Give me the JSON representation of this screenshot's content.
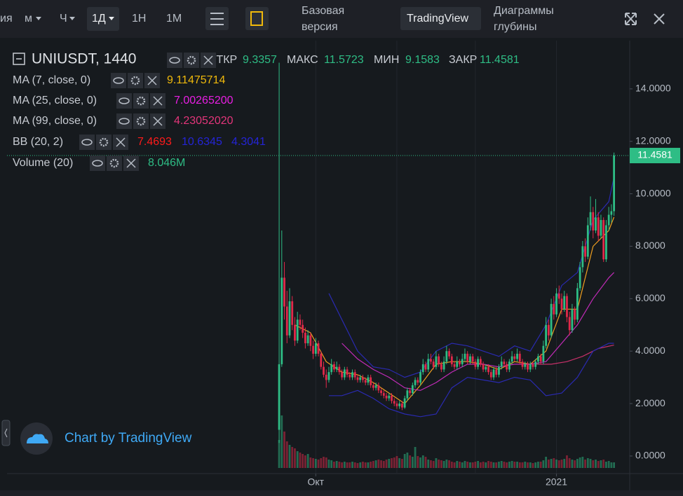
{
  "toolbar": {
    "intervals": [
      "ия",
      "м",
      "Ч",
      "1Д",
      "1Н",
      "1М"
    ],
    "basic": [
      "Базовая",
      "версия"
    ],
    "tradingview": "TradingView",
    "depth": [
      "Диаграммы",
      "глубины"
    ]
  },
  "watermark": "Chart by TradingView",
  "chart_data": {
    "type": "candlestick",
    "symbol": "UNIUSDT, 1440",
    "ohlc_labels": [
      "ОТКР",
      "МАКС",
      "МИН",
      "ЗАКР"
    ],
    "up_color": "#2ebd85",
    "down_color": "#e0294a",
    "ohlc": [
      [
        1.0,
        15.0,
        0.5,
        3.5
      ],
      [
        3.5,
        8.6,
        3.4,
        6.8
      ],
      [
        6.8,
        7.4,
        5.2,
        5.7
      ],
      [
        5.7,
        6.3,
        4.3,
        4.6
      ],
      [
        4.6,
        6.4,
        4.5,
        5.9
      ],
      [
        5.9,
        6.1,
        4.8,
        5.0
      ],
      [
        5.0,
        5.3,
        4.2,
        4.4
      ],
      [
        4.4,
        5.5,
        4.3,
        5.2
      ],
      [
        5.2,
        5.4,
        4.8,
        5.0
      ],
      [
        5.0,
        5.2,
        4.5,
        4.7
      ],
      [
        4.7,
        4.9,
        4.1,
        4.3
      ],
      [
        4.3,
        4.8,
        4.2,
        4.6
      ],
      [
        4.6,
        4.7,
        4.0,
        4.2
      ],
      [
        4.2,
        4.4,
        3.7,
        3.9
      ],
      [
        3.9,
        4.5,
        3.8,
        4.3
      ],
      [
        4.3,
        4.4,
        3.8,
        3.9
      ],
      [
        3.9,
        4.0,
        3.3,
        3.4
      ],
      [
        3.4,
        3.6,
        3.0,
        3.1
      ],
      [
        3.1,
        3.3,
        2.6,
        2.9
      ],
      [
        2.9,
        3.4,
        2.8,
        3.2
      ],
      [
        3.2,
        3.7,
        3.1,
        3.5
      ],
      [
        3.5,
        3.6,
        3.2,
        3.3
      ],
      [
        3.3,
        3.6,
        3.2,
        3.4
      ],
      [
        3.4,
        3.5,
        3.1,
        3.2
      ],
      [
        3.2,
        3.3,
        2.9,
        3.0
      ],
      [
        3.0,
        3.4,
        2.9,
        3.3
      ],
      [
        3.3,
        3.4,
        3.0,
        3.1
      ],
      [
        3.1,
        3.2,
        2.9,
        3.0
      ],
      [
        3.0,
        3.3,
        2.9,
        3.2
      ],
      [
        3.2,
        3.3,
        2.9,
        3.0
      ],
      [
        3.0,
        3.1,
        2.8,
        2.9
      ],
      [
        2.9,
        3.1,
        2.8,
        3.0
      ],
      [
        3.0,
        3.1,
        2.8,
        2.9
      ],
      [
        2.9,
        3.0,
        2.7,
        2.8
      ],
      [
        2.8,
        3.1,
        2.7,
        3.0
      ],
      [
        3.0,
        3.1,
        2.6,
        2.7
      ],
      [
        2.7,
        2.8,
        2.5,
        2.6
      ],
      [
        2.6,
        2.8,
        2.5,
        2.7
      ],
      [
        2.7,
        2.8,
        2.4,
        2.5
      ],
      [
        2.5,
        2.6,
        2.3,
        2.4
      ],
      [
        2.4,
        2.5,
        2.2,
        2.3
      ],
      [
        2.3,
        2.4,
        2.1,
        2.2
      ],
      [
        2.2,
        2.4,
        2.1,
        2.3
      ],
      [
        2.3,
        2.4,
        2.0,
        2.1
      ],
      [
        2.1,
        2.2,
        1.9,
        2.0
      ],
      [
        2.0,
        2.1,
        1.8,
        1.9
      ],
      [
        1.9,
        2.1,
        1.8,
        2.0
      ],
      [
        2.0,
        2.1,
        1.75,
        1.85
      ],
      [
        1.85,
        2.3,
        1.8,
        2.2
      ],
      [
        2.2,
        2.6,
        2.1,
        2.5
      ],
      [
        2.5,
        2.6,
        2.3,
        2.4
      ],
      [
        2.4,
        2.8,
        2.3,
        2.7
      ],
      [
        2.7,
        3.0,
        2.6,
        2.9
      ],
      [
        2.9,
        3.0,
        2.7,
        2.8
      ],
      [
        2.8,
        3.3,
        2.7,
        3.2
      ],
      [
        3.2,
        3.7,
        3.1,
        3.5
      ],
      [
        3.5,
        3.6,
        3.2,
        3.3
      ],
      [
        3.3,
        3.9,
        3.2,
        3.7
      ],
      [
        3.7,
        3.9,
        3.5,
        3.6
      ],
      [
        3.6,
        3.7,
        3.3,
        3.4
      ],
      [
        3.4,
        4.0,
        3.3,
        3.8
      ],
      [
        3.8,
        3.9,
        3.4,
        3.5
      ],
      [
        3.5,
        3.6,
        3.2,
        3.3
      ],
      [
        3.3,
        3.8,
        3.2,
        3.6
      ],
      [
        3.6,
        4.2,
        3.5,
        4.0
      ],
      [
        4.0,
        4.1,
        3.7,
        3.8
      ],
      [
        3.8,
        3.9,
        3.4,
        3.5
      ],
      [
        3.5,
        3.6,
        3.3,
        3.4
      ],
      [
        3.4,
        3.8,
        3.3,
        3.6
      ],
      [
        3.6,
        3.7,
        3.4,
        3.5
      ],
      [
        3.5,
        3.9,
        3.4,
        3.7
      ],
      [
        3.7,
        4.1,
        3.6,
        3.9
      ],
      [
        3.9,
        4.0,
        3.5,
        3.6
      ],
      [
        3.6,
        3.9,
        3.5,
        3.8
      ],
      [
        3.8,
        3.9,
        3.5,
        3.6
      ],
      [
        3.6,
        3.7,
        3.3,
        3.4
      ],
      [
        3.4,
        3.8,
        3.3,
        3.7
      ],
      [
        3.7,
        3.8,
        3.4,
        3.5
      ],
      [
        3.5,
        3.6,
        3.2,
        3.3
      ],
      [
        3.3,
        3.5,
        3.2,
        3.4
      ],
      [
        3.4,
        3.5,
        3.1,
        3.2
      ],
      [
        3.2,
        3.3,
        2.9,
        3.0
      ],
      [
        3.0,
        3.4,
        2.9,
        3.3
      ],
      [
        3.3,
        3.4,
        3.0,
        3.1
      ],
      [
        3.1,
        3.5,
        3.0,
        3.4
      ],
      [
        3.4,
        3.8,
        3.3,
        3.6
      ],
      [
        3.6,
        3.7,
        3.4,
        3.5
      ],
      [
        3.5,
        3.6,
        3.2,
        3.3
      ],
      [
        3.3,
        3.7,
        3.2,
        3.6
      ],
      [
        3.6,
        4.0,
        3.5,
        3.8
      ],
      [
        3.8,
        3.9,
        3.6,
        3.7
      ],
      [
        3.7,
        4.1,
        3.6,
        3.9
      ],
      [
        3.9,
        4.0,
        3.5,
        3.6
      ],
      [
        3.6,
        3.7,
        3.3,
        3.4
      ],
      [
        3.4,
        3.6,
        3.3,
        3.5
      ],
      [
        3.5,
        3.6,
        3.2,
        3.3
      ],
      [
        3.3,
        3.6,
        3.2,
        3.5
      ],
      [
        3.5,
        3.6,
        3.3,
        3.4
      ],
      [
        3.4,
        3.7,
        3.3,
        3.6
      ],
      [
        3.6,
        3.9,
        3.5,
        3.8
      ],
      [
        3.8,
        3.9,
        3.5,
        3.6
      ],
      [
        3.6,
        4.4,
        3.5,
        4.2
      ],
      [
        4.2,
        5.3,
        4.1,
        5.0
      ],
      [
        5.0,
        5.2,
        4.4,
        4.6
      ],
      [
        4.6,
        6.0,
        4.5,
        5.8
      ],
      [
        5.8,
        6.1,
        5.2,
        5.4
      ],
      [
        5.4,
        6.4,
        5.3,
        6.2
      ],
      [
        6.2,
        6.5,
        5.8,
        6.0
      ],
      [
        6.0,
        6.2,
        5.4,
        5.6
      ],
      [
        5.6,
        6.3,
        5.5,
        6.1
      ],
      [
        6.1,
        6.2,
        5.1,
        5.3
      ],
      [
        5.3,
        5.5,
        4.6,
        4.8
      ],
      [
        4.8,
        5.8,
        4.7,
        5.6
      ],
      [
        5.6,
        5.7,
        5.0,
        5.2
      ],
      [
        5.2,
        6.6,
        5.1,
        6.4
      ],
      [
        6.4,
        7.4,
        6.3,
        7.2
      ],
      [
        7.2,
        8.2,
        7.0,
        8.0
      ],
      [
        8.0,
        8.3,
        7.4,
        7.6
      ],
      [
        7.6,
        9.1,
        7.5,
        8.8
      ],
      [
        8.8,
        9.9,
        8.6,
        9.3
      ],
      [
        9.3,
        9.5,
        8.3,
        8.6
      ],
      [
        8.6,
        9.8,
        8.5,
        9.1
      ],
      [
        9.1,
        9.3,
        8.2,
        8.4
      ],
      [
        8.4,
        9.2,
        8.3,
        9.0
      ],
      [
        9.0,
        9.1,
        7.4,
        7.5
      ],
      [
        7.5,
        9.0,
        7.4,
        8.8
      ],
      [
        8.8,
        9.5,
        8.6,
        9.2
      ],
      [
        9.2,
        9.6,
        8.9,
        9.3357
      ],
      [
        9.3357,
        11.5723,
        9.1583,
        11.4581
      ]
    ],
    "volume": [
      40,
      75,
      52,
      38,
      33,
      30,
      28,
      24,
      22,
      20,
      18,
      20,
      15,
      14,
      13,
      12,
      14,
      16,
      15,
      12,
      11,
      9,
      10,
      9,
      8,
      9,
      8,
      8,
      9,
      8,
      7,
      8,
      9,
      8,
      8,
      9,
      10,
      11,
      12,
      11,
      10,
      12,
      13,
      14,
      15,
      17,
      14,
      13,
      20,
      22,
      18,
      16,
      30,
      17,
      15,
      18,
      16,
      12,
      11,
      10,
      14,
      12,
      11,
      10,
      12,
      11,
      9,
      8,
      10,
      9,
      8,
      10,
      9,
      8,
      8,
      9,
      10,
      8,
      9,
      8,
      10,
      9,
      8,
      8,
      9,
      10,
      9,
      8,
      9,
      10,
      9,
      9,
      8,
      8,
      9,
      8,
      8,
      7,
      8,
      9,
      9,
      11,
      16,
      12,
      13,
      14,
      12,
      11,
      12,
      13,
      18,
      14,
      12,
      11,
      13,
      15,
      16,
      12,
      14,
      13,
      11,
      12,
      10,
      11,
      12,
      9,
      10,
      8,
      8
    ],
    "volume_lim": [
      0,
      100
    ],
    "xlim": [
      -106.7,
      134
    ],
    "xticks": [
      {
        "value": 14,
        "label": "Окт"
      },
      {
        "value": 106,
        "label": "2021"
      }
    ],
    "xgrid_minor": [
      45,
      75
    ],
    "ylim": [
      -0.67,
      15.84
    ],
    "yticks": [
      {
        "value": 0,
        "label": "0.0000"
      },
      {
        "value": 2,
        "label": "2.0000"
      },
      {
        "value": 4,
        "label": "4.0000"
      },
      {
        "value": 6,
        "label": "6.0000"
      },
      {
        "value": 8,
        "label": "8.0000"
      },
      {
        "value": 10,
        "label": "10.0000"
      },
      {
        "value": 12,
        "label": "12.0000"
      },
      {
        "value": 14,
        "label": "14.0000"
      }
    ],
    "indicators": [
      {
        "name": "MA (7, close, 0)",
        "legend": [
          {
            "text": "9.11475714",
            "color": "#f0b90b"
          }
        ],
        "lines": [
          {
            "color": "#f0a020",
            "x": [
              6,
              12,
              18,
              24,
              30,
              36,
              42,
              48,
              54,
              60,
              66,
              72,
              78,
              84,
              90,
              96,
              102,
              108,
              114,
              120,
              126,
              128
            ],
            "values": [
              5.0,
              4.7,
              3.6,
              3.2,
              3.1,
              2.8,
              2.4,
              2.0,
              2.7,
              3.5,
              3.6,
              3.6,
              3.5,
              3.3,
              3.6,
              3.5,
              4.0,
              5.6,
              5.6,
              8.0,
              8.6,
              9.11
            ]
          }
        ]
      },
      {
        "name": "MA (25, close, 0)",
        "legend": [
          {
            "text": "7.00265200",
            "color": "#e91ee3"
          }
        ],
        "lines": [
          {
            "color": "#c22bb8",
            "x": [
              24,
              30,
              36,
              42,
              48,
              54,
              60,
              66,
              72,
              78,
              84,
              90,
              96,
              102,
              108,
              114,
              120,
              126,
              128
            ],
            "values": [
              4.3,
              3.7,
              3.3,
              3.0,
              2.6,
              2.5,
              2.8,
              3.2,
              3.5,
              3.5,
              3.4,
              3.5,
              3.5,
              3.6,
              4.3,
              5.0,
              6.0,
              6.8,
              7.0
            ]
          }
        ]
      },
      {
        "name": "MA (99, close, 0)",
        "legend": [
          {
            "text": "4.23052020",
            "color": "#e3357a"
          }
        ],
        "lines": [
          {
            "color": "#c8306a",
            "x": [
              98,
              104,
              110,
              116,
              122,
              128
            ],
            "values": [
              3.5,
              3.5,
              3.6,
              3.8,
              4.1,
              4.23
            ]
          }
        ]
      },
      {
        "name": "BB (20, 2)",
        "legend": [
          {
            "text": "7.4693",
            "color": "#ff1a1a"
          },
          {
            "text": "10.6345",
            "color": "#2424d6"
          },
          {
            "text": "4.3041",
            "color": "#2424d6"
          }
        ],
        "lines": [
          {
            "color": "#2a2ab0",
            "x": [
              19,
              24,
              30,
              36,
              42,
              48,
              54,
              60,
              66,
              72,
              78,
              84,
              90,
              96,
              102,
              108,
              114,
              120,
              126,
              128
            ],
            "values": [
              6.2,
              5.2,
              4.0,
              3.4,
              3.3,
              3.0,
              3.2,
              4.0,
              4.3,
              4.2,
              4.0,
              3.8,
              4.2,
              4.0,
              5.0,
              6.5,
              7.0,
              9.0,
              9.7,
              10.63
            ]
          },
          {
            "color": "#2a2ab0",
            "x": [
              19,
              24,
              30,
              36,
              42,
              48,
              54,
              60,
              66,
              72,
              78,
              84,
              90,
              96,
              102,
              108,
              114,
              120,
              126,
              128
            ],
            "values": [
              2.3,
              2.3,
              2.5,
              2.2,
              1.8,
              1.6,
              1.5,
              1.6,
              2.6,
              3.0,
              2.9,
              2.8,
              3.0,
              2.9,
              2.3,
              2.4,
              3.0,
              4.0,
              4.3,
              4.3
            ]
          }
        ]
      },
      {
        "name": "Volume (20)",
        "legend": [
          {
            "text": "8.046M",
            "color": "#2ebd85"
          }
        ],
        "lines": []
      }
    ]
  }
}
